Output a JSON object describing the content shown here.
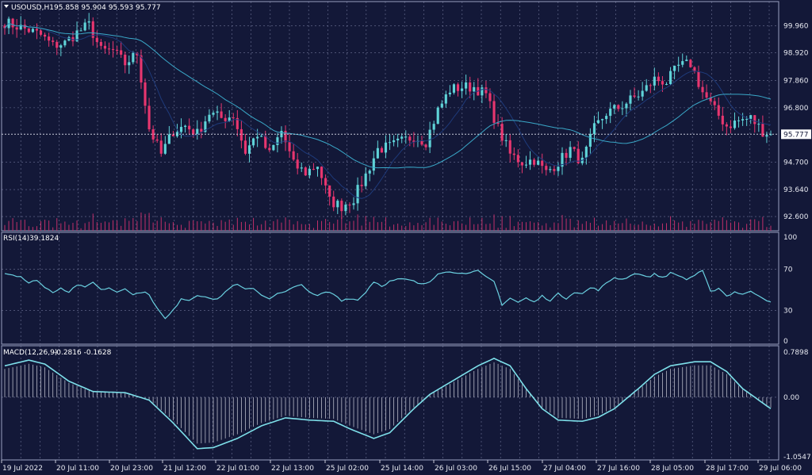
{
  "header": {
    "symbol": "USOUSD,H1",
    "ohlc": "95.858 95.904 95.593 95.777"
  },
  "colors": {
    "background": "#131838",
    "grid": "#6e7396",
    "bull": "#5fd3d8",
    "bear": "#e8366f",
    "ma_fast": "#3aa8c8",
    "ma_slow": "#1e3a7a",
    "volume": "#c0306a",
    "rsi_line": "#6ad0e0",
    "macd_line": "#7ee0ea",
    "macd_hist": "#b8bac8",
    "price_tag_bg": "#ffffff",
    "price_tag_text": "#131838"
  },
  "chart_data": [
    {
      "type": "candlestick",
      "name": "price",
      "yticks": [
        "99.960",
        "98.920",
        "97.860",
        "96.800",
        "95.777",
        "94.700",
        "93.640",
        "92.600"
      ],
      "ytick_values": [
        99.96,
        98.92,
        97.86,
        96.8,
        95.777,
        94.7,
        93.64,
        92.6
      ],
      "ylim": [
        92.05,
        100.9
      ],
      "current_price": "95.777",
      "current_price_value": 95.777,
      "xticks": [
        "19 Jul 2022",
        "20 Jul 11:00",
        "20 Jul 23:00",
        "21 Jul 12:00",
        "22 Jul 01:00",
        "22 Jul 13:00",
        "25 Jul 02:00",
        "25 Jul 14:00",
        "26 Jul 03:00",
        "26 Jul 15:00",
        "27 Jul 04:00",
        "27 Jul 16:00",
        "28 Jul 05:00",
        "28 Jul 17:00",
        "29 Jul 06:00"
      ],
      "close_anchors": [
        [
          0,
          100.1
        ],
        [
          3,
          99.95
        ],
        [
          6,
          99.8
        ],
        [
          9,
          99.6
        ],
        [
          12,
          99.2
        ],
        [
          15,
          99.3
        ],
        [
          18,
          99.7
        ],
        [
          21,
          100.0
        ],
        [
          24,
          99.0
        ],
        [
          27,
          99.0
        ],
        [
          30,
          98.5
        ],
        [
          33,
          98.9
        ],
        [
          36,
          96.0
        ],
        [
          39,
          95.0
        ],
        [
          42,
          95.9
        ],
        [
          45,
          96.1
        ],
        [
          48,
          95.8
        ],
        [
          51,
          96.6
        ],
        [
          54,
          96.4
        ],
        [
          57,
          96.5
        ],
        [
          60,
          95.1
        ],
        [
          63,
          95.8
        ],
        [
          66,
          95.0
        ],
        [
          69,
          95.9
        ],
        [
          72,
          94.6
        ],
        [
          75,
          94.3
        ],
        [
          78,
          94.6
        ],
        [
          81,
          93.2
        ],
        [
          84,
          93.0
        ],
        [
          87,
          93.3
        ],
        [
          90,
          94.2
        ],
        [
          93,
          95.2
        ],
        [
          96,
          95.3
        ],
        [
          99,
          95.5
        ],
        [
          102,
          95.7
        ],
        [
          105,
          95.5
        ],
        [
          108,
          96.7
        ],
        [
          111,
          97.5
        ],
        [
          114,
          97.6
        ],
        [
          117,
          97.6
        ],
        [
          120,
          97.3
        ],
        [
          123,
          96.0
        ],
        [
          126,
          95.0
        ],
        [
          129,
          94.7
        ],
        [
          132,
          94.8
        ],
        [
          135,
          94.3
        ],
        [
          138,
          94.7
        ],
        [
          141,
          95.2
        ],
        [
          144,
          94.7
        ],
        [
          147,
          96.0
        ],
        [
          150,
          96.6
        ],
        [
          153,
          96.8
        ],
        [
          156,
          97.1
        ],
        [
          159,
          97.4
        ],
        [
          162,
          97.9
        ],
        [
          165,
          97.8
        ],
        [
          168,
          98.4
        ],
        [
          171,
          98.5
        ],
        [
          174,
          97.4
        ],
        [
          177,
          96.7
        ],
        [
          180,
          96.1
        ],
        [
          183,
          96.3
        ],
        [
          186,
          96.4
        ],
        [
          189,
          95.9
        ],
        [
          191,
          95.78
        ]
      ],
      "volume_shown": true,
      "moving_averages": 2
    },
    {
      "type": "line",
      "name": "RSI(14)",
      "label": "RSI(14)",
      "value": "39.1824",
      "yticks": [
        "100",
        "70",
        "30",
        "0"
      ],
      "ytick_values": [
        100,
        70,
        30,
        0
      ],
      "ylim": [
        0,
        100
      ],
      "y_anchors": [
        [
          0,
          66
        ],
        [
          4,
          63
        ],
        [
          6,
          56
        ],
        [
          8,
          60
        ],
        [
          10,
          52
        ],
        [
          12,
          48
        ],
        [
          14,
          52
        ],
        [
          16,
          48
        ],
        [
          18,
          55
        ],
        [
          20,
          52
        ],
        [
          22,
          58
        ],
        [
          24,
          50
        ],
        [
          26,
          52
        ],
        [
          28,
          48
        ],
        [
          30,
          52
        ],
        [
          32,
          45
        ],
        [
          34,
          48
        ],
        [
          36,
          46
        ],
        [
          38,
          32
        ],
        [
          40,
          22
        ],
        [
          42,
          30
        ],
        [
          44,
          42
        ],
        [
          46,
          40
        ],
        [
          48,
          45
        ],
        [
          50,
          44
        ],
        [
          52,
          40
        ],
        [
          54,
          44
        ],
        [
          56,
          52
        ],
        [
          58,
          55
        ],
        [
          60,
          50
        ],
        [
          62,
          52
        ],
        [
          64,
          45
        ],
        [
          66,
          42
        ],
        [
          68,
          46
        ],
        [
          70,
          48
        ],
        [
          72,
          52
        ],
        [
          74,
          56
        ],
        [
          76,
          47
        ],
        [
          78,
          44
        ],
        [
          80,
          48
        ],
        [
          82,
          46
        ],
        [
          84,
          40
        ],
        [
          86,
          42
        ],
        [
          88,
          40
        ],
        [
          90,
          48
        ],
        [
          92,
          58
        ],
        [
          94,
          54
        ],
        [
          96,
          58
        ],
        [
          98,
          60
        ],
        [
          100,
          60
        ],
        [
          102,
          58
        ],
        [
          104,
          55
        ],
        [
          106,
          58
        ],
        [
          108,
          66
        ],
        [
          110,
          68
        ],
        [
          112,
          66
        ],
        [
          114,
          67
        ],
        [
          116,
          66
        ],
        [
          118,
          68
        ],
        [
          120,
          62
        ],
        [
          122,
          58
        ],
        [
          124,
          36
        ],
        [
          126,
          42
        ],
        [
          128,
          38
        ],
        [
          130,
          42
        ],
        [
          132,
          38
        ],
        [
          134,
          44
        ],
        [
          136,
          40
        ],
        [
          138,
          46
        ],
        [
          140,
          42
        ],
        [
          142,
          48
        ],
        [
          144,
          46
        ],
        [
          146,
          52
        ],
        [
          148,
          50
        ],
        [
          150,
          56
        ],
        [
          152,
          62
        ],
        [
          154,
          60
        ],
        [
          156,
          64
        ],
        [
          158,
          66
        ],
        [
          160,
          62
        ],
        [
          162,
          65
        ],
        [
          164,
          62
        ],
        [
          166,
          66
        ],
        [
          168,
          64
        ],
        [
          170,
          60
        ],
        [
          172,
          64
        ],
        [
          174,
          68
        ],
        [
          176,
          48
        ],
        [
          178,
          52
        ],
        [
          180,
          44
        ],
        [
          182,
          48
        ],
        [
          184,
          46
        ],
        [
          186,
          48
        ],
        [
          188,
          45
        ],
        [
          190,
          40
        ],
        [
          191,
          39.2
        ]
      ]
    },
    {
      "type": "line",
      "name": "MACD(12,26,9)",
      "label": "MACD(12,26,9)",
      "value": "-0.2816 -0.1628",
      "yticks": [
        "0.7898",
        "0.00",
        "-1.0547"
      ],
      "ytick_values": [
        0.7898,
        0.0,
        -1.0547
      ],
      "ylim": [
        -1.0547,
        0.7898
      ],
      "y_anchors": [
        [
          0,
          0.55
        ],
        [
          6,
          0.65
        ],
        [
          10,
          0.58
        ],
        [
          16,
          0.28
        ],
        [
          22,
          0.1
        ],
        [
          30,
          0.08
        ],
        [
          36,
          -0.05
        ],
        [
          42,
          -0.45
        ],
        [
          48,
          -0.9
        ],
        [
          52,
          -0.88
        ],
        [
          58,
          -0.72
        ],
        [
          64,
          -0.5
        ],
        [
          70,
          -0.36
        ],
        [
          76,
          -0.4
        ],
        [
          82,
          -0.42
        ],
        [
          86,
          -0.55
        ],
        [
          92,
          -0.72
        ],
        [
          96,
          -0.62
        ],
        [
          102,
          -0.2
        ],
        [
          106,
          0.05
        ],
        [
          112,
          0.3
        ],
        [
          118,
          0.55
        ],
        [
          122,
          0.68
        ],
        [
          126,
          0.55
        ],
        [
          130,
          0.15
        ],
        [
          134,
          -0.2
        ],
        [
          138,
          -0.4
        ],
        [
          144,
          -0.42
        ],
        [
          148,
          -0.35
        ],
        [
          152,
          -0.2
        ],
        [
          158,
          0.15
        ],
        [
          162,
          0.4
        ],
        [
          166,
          0.55
        ],
        [
          172,
          0.62
        ],
        [
          176,
          0.62
        ],
        [
          180,
          0.45
        ],
        [
          184,
          0.15
        ],
        [
          188,
          -0.05
        ],
        [
          191,
          -0.2
        ]
      ]
    }
  ]
}
